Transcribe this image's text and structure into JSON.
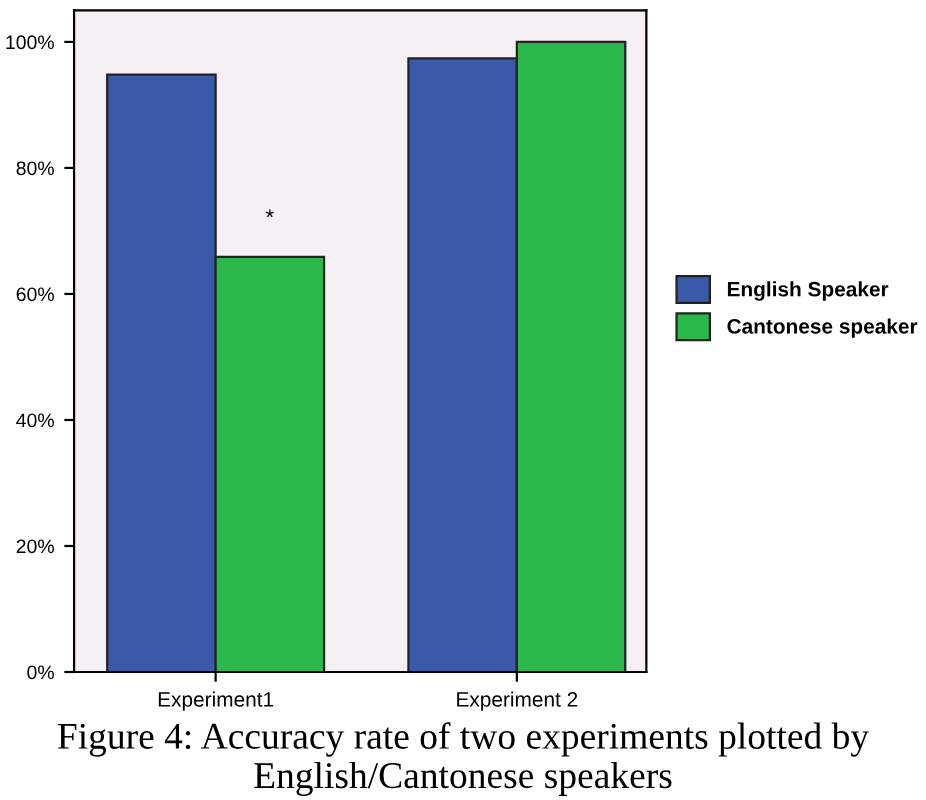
{
  "chart_data": {
    "type": "bar",
    "categories": [
      "Experiment1",
      "Experiment 2"
    ],
    "series": [
      {
        "name": "English Speaker",
        "color": "#3a59a8",
        "values": [
          94.8,
          97.4
        ]
      },
      {
        "name": "Cantonese speaker",
        "color": "#2bb84a",
        "values": [
          65.9,
          100
        ]
      }
    ],
    "ylim": [
      0,
      105
    ],
    "yticks": [
      {
        "value": 0,
        "label": "0%"
      },
      {
        "value": 20,
        "label": "20%"
      },
      {
        "value": 40,
        "label": "40%"
      },
      {
        "value": 60,
        "label": "60%"
      },
      {
        "value": 80,
        "label": "80%"
      },
      {
        "value": 100,
        "label": "100%"
      }
    ],
    "annotations": [
      "*",
      "Figure 4: Accuracy rate of two experiments plotted by English/Cantonese speakers"
    ],
    "legend": "right",
    "grid": false
  }
}
